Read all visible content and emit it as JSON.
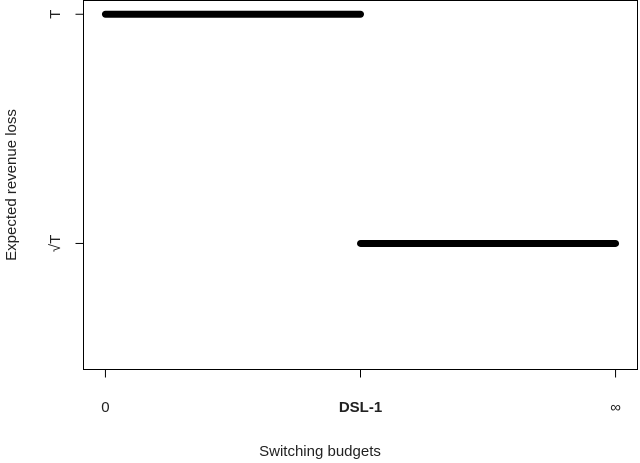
{
  "chart_data": {
    "type": "line",
    "x_label": "Switching budgets",
    "y_label": "Expected revenue loss",
    "categories": [
      "0",
      "DSL-1",
      "∞"
    ],
    "series": [
      {
        "color": "#000000",
        "values": [
          2,
          2,
          null
        ]
      },
      {
        "color": "#000000",
        "values": [
          null,
          1,
          1
        ]
      }
    ],
    "ylim": [
      0.45,
      2.06
    ],
    "yticks": [
      {
        "value": 1,
        "label": "√T"
      },
      {
        "value": 2,
        "label": "T"
      }
    ],
    "grid": false
  }
}
